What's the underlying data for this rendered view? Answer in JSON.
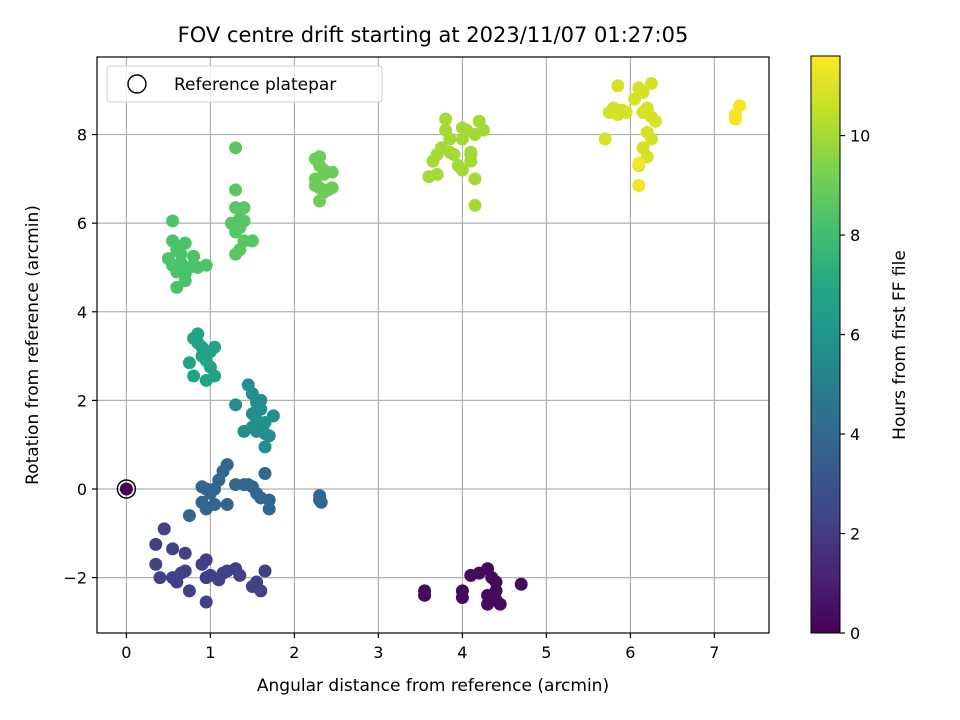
{
  "chart_data": {
    "type": "scatter",
    "title": "FOV centre drift starting at 2023/11/07 01:27:05",
    "xlabel": "Angular distance from reference (arcmin)",
    "ylabel": "Rotation from reference (arcmin)",
    "xlim": [
      -0.35,
      7.65
    ],
    "ylim": [
      -3.25,
      9.75
    ],
    "xticks": [
      0,
      1,
      2,
      3,
      4,
      5,
      6,
      7
    ],
    "yticks": [
      -2,
      0,
      2,
      4,
      6,
      8
    ],
    "xtick_labels": [
      "0",
      "1",
      "2",
      "3",
      "4",
      "5",
      "6",
      "7"
    ],
    "ytick_labels": [
      "−2",
      "0",
      "2",
      "4",
      "6",
      "8"
    ],
    "grid": true,
    "legend": {
      "position": "top-left",
      "entries": [
        {
          "label": "Reference platepar",
          "marker": "open-circle"
        }
      ]
    },
    "colorbar": {
      "label": "Hours from first FF file",
      "colormap": "viridis",
      "range": [
        0,
        11.6
      ],
      "ticks": [
        0,
        2,
        4,
        6,
        8,
        10
      ],
      "tick_labels": [
        "0",
        "2",
        "4",
        "6",
        "8",
        "10"
      ]
    },
    "reference_point": {
      "x": 0,
      "y": 0,
      "hours": 0
    },
    "clusters": [
      {
        "hours": 0.3,
        "points": [
          [
            4.1,
            -1.95
          ],
          [
            4.2,
            -1.9
          ],
          [
            4.3,
            -1.8
          ],
          [
            4.35,
            -2.0
          ],
          [
            4.4,
            -2.1
          ],
          [
            4.3,
            -2.4
          ],
          [
            4.4,
            -2.5
          ],
          [
            4.45,
            -2.6
          ],
          [
            4.7,
            -2.15
          ],
          [
            4.0,
            -2.3
          ],
          [
            4.0,
            -2.45
          ],
          [
            3.55,
            -2.3
          ],
          [
            3.55,
            -2.4
          ],
          [
            4.3,
            -2.6
          ],
          [
            4.4,
            -2.3
          ]
        ]
      },
      {
        "hours": 2.2,
        "points": [
          [
            0.35,
            -1.25
          ],
          [
            0.45,
            -0.9
          ],
          [
            0.35,
            -1.7
          ],
          [
            0.4,
            -2.0
          ],
          [
            0.55,
            -1.35
          ],
          [
            0.55,
            -2.0
          ],
          [
            0.6,
            -2.1
          ],
          [
            0.65,
            -1.9
          ],
          [
            0.7,
            -1.45
          ],
          [
            0.7,
            -1.85
          ],
          [
            0.75,
            -2.3
          ],
          [
            0.9,
            -1.7
          ],
          [
            0.95,
            -1.6
          ],
          [
            0.95,
            -2.0
          ],
          [
            1.0,
            -1.95
          ],
          [
            0.95,
            -2.55
          ],
          [
            1.1,
            -2.05
          ],
          [
            1.15,
            -1.9
          ],
          [
            1.2,
            -1.85
          ],
          [
            1.3,
            -1.8
          ],
          [
            1.35,
            -1.95
          ],
          [
            1.55,
            -2.1
          ],
          [
            1.6,
            -2.3
          ],
          [
            1.65,
            -1.85
          ],
          [
            1.5,
            -2.2
          ]
        ]
      },
      {
        "hours": 3.8,
        "points": [
          [
            0.9,
            0.05
          ],
          [
            0.95,
            0.0
          ],
          [
            1.0,
            -0.1
          ],
          [
            0.9,
            -0.3
          ],
          [
            0.95,
            -0.45
          ],
          [
            1.05,
            -0.35
          ],
          [
            1.1,
            0.2
          ],
          [
            1.15,
            0.4
          ],
          [
            1.2,
            0.55
          ],
          [
            1.05,
            0.0
          ],
          [
            1.2,
            -0.35
          ],
          [
            1.3,
            0.1
          ],
          [
            1.4,
            0.1
          ],
          [
            1.5,
            0.05
          ],
          [
            1.55,
            -0.1
          ],
          [
            1.6,
            -0.2
          ],
          [
            1.7,
            -0.25
          ],
          [
            1.7,
            -0.45
          ],
          [
            1.65,
            0.35
          ],
          [
            1.45,
            0.1
          ],
          [
            0.75,
            -0.6
          ],
          [
            2.3,
            -0.15
          ],
          [
            2.32,
            -0.3
          ],
          [
            2.3,
            -0.25
          ]
        ]
      },
      {
        "hours": 5.7,
        "points": [
          [
            1.3,
            1.9
          ],
          [
            1.4,
            1.3
          ],
          [
            1.45,
            2.35
          ],
          [
            1.5,
            2.15
          ],
          [
            1.5,
            1.7
          ],
          [
            1.55,
            1.3
          ],
          [
            1.55,
            1.95
          ],
          [
            1.6,
            2.0
          ],
          [
            1.65,
            1.5
          ],
          [
            1.65,
            1.25
          ],
          [
            1.7,
            1.2
          ],
          [
            1.65,
            0.95
          ],
          [
            1.75,
            1.65
          ],
          [
            1.6,
            1.8
          ],
          [
            1.55,
            1.55
          ],
          [
            1.5,
            1.4
          ]
        ]
      },
      {
        "hours": 6.7,
        "points": [
          [
            0.75,
            2.85
          ],
          [
            0.8,
            3.4
          ],
          [
            0.85,
            3.3
          ],
          [
            0.85,
            3.5
          ],
          [
            0.9,
            3.0
          ],
          [
            0.9,
            3.2
          ],
          [
            0.95,
            2.9
          ],
          [
            0.95,
            2.45
          ],
          [
            1.0,
            3.1
          ],
          [
            1.05,
            3.2
          ],
          [
            1.0,
            2.75
          ],
          [
            1.05,
            2.55
          ],
          [
            0.8,
            2.55
          ]
        ]
      },
      {
        "hours": 8.3,
        "points": [
          [
            0.5,
            5.2
          ],
          [
            0.55,
            5.6
          ],
          [
            0.55,
            5.05
          ],
          [
            0.6,
            4.9
          ],
          [
            0.6,
            4.55
          ],
          [
            0.65,
            5.1
          ],
          [
            0.7,
            4.85
          ],
          [
            0.75,
            5.0
          ],
          [
            0.7,
            5.55
          ],
          [
            0.8,
            5.25
          ],
          [
            0.85,
            5.0
          ],
          [
            0.95,
            5.05
          ],
          [
            0.55,
            6.05
          ],
          [
            0.6,
            5.4
          ],
          [
            0.7,
            4.7
          ],
          [
            0.65,
            5.3
          ]
        ]
      },
      {
        "hours": 8.6,
        "points": [
          [
            1.25,
            6.0
          ],
          [
            1.3,
            5.8
          ],
          [
            1.3,
            6.35
          ],
          [
            1.35,
            6.1
          ],
          [
            1.35,
            5.9
          ],
          [
            1.4,
            6.05
          ],
          [
            1.4,
            6.35
          ],
          [
            1.35,
            5.4
          ],
          [
            1.3,
            5.3
          ],
          [
            1.3,
            6.75
          ],
          [
            1.3,
            7.7
          ],
          [
            1.5,
            5.6
          ],
          [
            1.4,
            5.6
          ]
        ]
      },
      {
        "hours": 9.0,
        "points": [
          [
            2.25,
            7.45
          ],
          [
            2.3,
            7.5
          ],
          [
            2.3,
            7.3
          ],
          [
            2.35,
            7.1
          ],
          [
            2.25,
            7.0
          ],
          [
            2.3,
            6.8
          ],
          [
            2.3,
            6.5
          ],
          [
            2.35,
            6.7
          ],
          [
            2.4,
            6.75
          ],
          [
            2.45,
            6.8
          ],
          [
            2.45,
            7.15
          ],
          [
            2.35,
            7.2
          ],
          [
            2.25,
            6.85
          ]
        ]
      },
      {
        "hours": 10.0,
        "points": [
          [
            3.6,
            7.05
          ],
          [
            3.65,
            7.4
          ],
          [
            3.7,
            7.1
          ],
          [
            3.75,
            7.7
          ],
          [
            3.7,
            7.55
          ],
          [
            3.8,
            8.1
          ],
          [
            3.8,
            8.35
          ],
          [
            3.85,
            7.9
          ],
          [
            3.85,
            7.6
          ],
          [
            3.9,
            7.55
          ],
          [
            3.95,
            7.3
          ],
          [
            4.0,
            7.2
          ],
          [
            4.0,
            7.9
          ],
          [
            4.05,
            8.1
          ],
          [
            4.1,
            7.4
          ],
          [
            4.15,
            7.0
          ],
          [
            4.1,
            7.55
          ],
          [
            4.15,
            8.0
          ],
          [
            4.2,
            8.3
          ],
          [
            4.25,
            8.1
          ],
          [
            4.15,
            6.4
          ],
          [
            4.1,
            7.6
          ],
          [
            4.0,
            8.15
          ]
        ]
      },
      {
        "hours": 10.9,
        "points": [
          [
            5.7,
            7.9
          ],
          [
            5.75,
            8.5
          ],
          [
            5.8,
            8.6
          ],
          [
            5.85,
            9.1
          ],
          [
            5.9,
            8.55
          ],
          [
            5.95,
            8.5
          ],
          [
            6.1,
            9.05
          ],
          [
            6.15,
            8.95
          ],
          [
            6.2,
            8.6
          ],
          [
            6.25,
            8.4
          ],
          [
            6.2,
            8.05
          ],
          [
            6.15,
            7.7
          ],
          [
            6.1,
            7.3
          ],
          [
            6.2,
            7.5
          ],
          [
            6.25,
            9.15
          ],
          [
            6.3,
            8.3
          ],
          [
            6.25,
            7.9
          ],
          [
            6.05,
            8.8
          ],
          [
            6.15,
            8.5
          ],
          [
            5.85,
            8.45
          ]
        ]
      },
      {
        "hours": 11.4,
        "points": [
          [
            6.1,
            6.85
          ],
          [
            7.25,
            8.35
          ],
          [
            7.3,
            8.65
          ],
          [
            7.25,
            8.45
          ],
          [
            6.1,
            7.35
          ]
        ]
      }
    ]
  }
}
